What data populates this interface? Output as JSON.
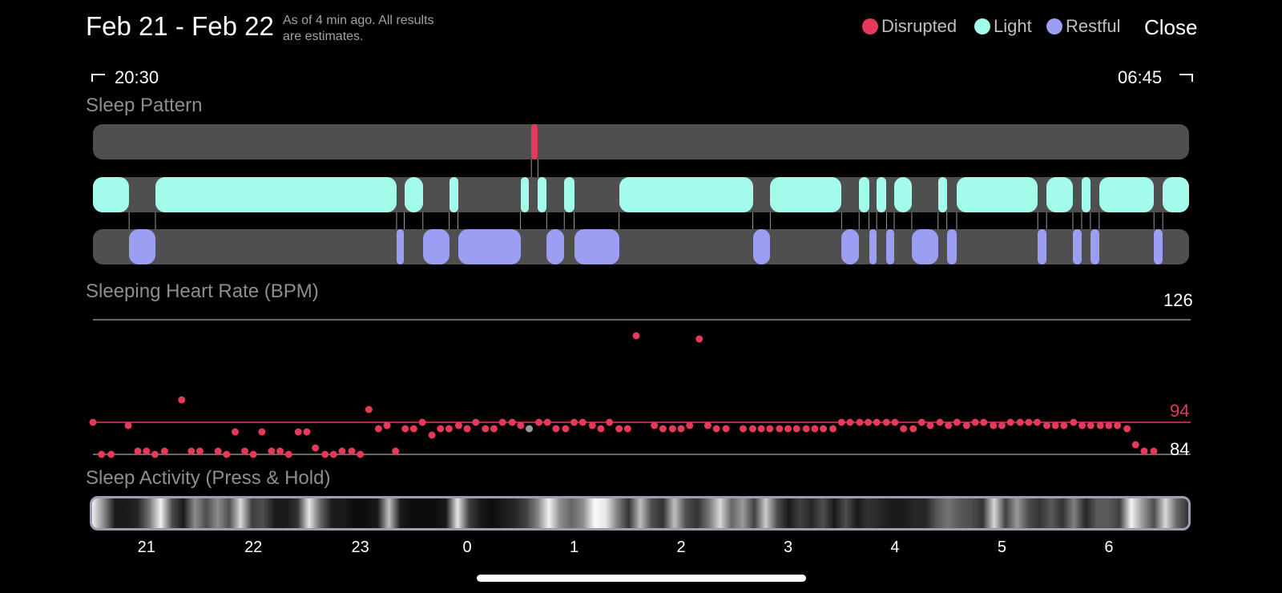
{
  "header": {
    "title": "Feb 21 - Feb 22",
    "asof_line1": "As of 4 min ago. All results",
    "asof_line2": "are estimates.",
    "close_label": "Close"
  },
  "legend": [
    {
      "label": "Disrupted",
      "color": "#e6395a"
    },
    {
      "label": "Light",
      "color": "#a3fbeb"
    },
    {
      "label": "Restful",
      "color": "#9a9ff4"
    }
  ],
  "time_range": {
    "start": "20:30",
    "end": "06:45"
  },
  "sleep_pattern": {
    "title": "Sleep Pattern",
    "disrupted": [
      [
        0.4,
        0.406
      ]
    ],
    "light": [
      [
        0.0,
        0.033
      ],
      [
        0.057,
        0.277
      ],
      [
        0.284,
        0.301
      ],
      [
        0.325,
        0.333
      ],
      [
        0.39,
        0.398
      ],
      [
        0.406,
        0.414
      ],
      [
        0.43,
        0.439
      ],
      [
        0.48,
        0.602
      ],
      [
        0.618,
        0.683
      ],
      [
        0.699,
        0.708
      ],
      [
        0.715,
        0.724
      ],
      [
        0.731,
        0.747
      ],
      [
        0.771,
        0.779
      ],
      [
        0.788,
        0.862
      ],
      [
        0.87,
        0.894
      ],
      [
        0.902,
        0.91
      ],
      [
        0.918,
        0.968
      ],
      [
        0.976,
        1.0
      ]
    ],
    "restful": [
      [
        0.033,
        0.057
      ],
      [
        0.277,
        0.284
      ],
      [
        0.301,
        0.325
      ],
      [
        0.333,
        0.39
      ],
      [
        0.414,
        0.43
      ],
      [
        0.439,
        0.48
      ],
      [
        0.602,
        0.618
      ],
      [
        0.683,
        0.699
      ],
      [
        0.708,
        0.715
      ],
      [
        0.724,
        0.731
      ],
      [
        0.747,
        0.771
      ],
      [
        0.779,
        0.788
      ],
      [
        0.862,
        0.87
      ],
      [
        0.894,
        0.902
      ],
      [
        0.91,
        0.918
      ],
      [
        0.968,
        0.976
      ]
    ]
  },
  "heart_rate": {
    "title": "Sleeping Heart Rate (BPM)",
    "max_label": "126",
    "avg_label": "94",
    "min_label": "84",
    "max": 126,
    "avg": 94,
    "min": 84,
    "dot_color": "#e6395a",
    "line_color": "#e6395a",
    "points": [
      [
        20.5,
        94
      ],
      [
        20.58,
        84
      ],
      [
        20.67,
        84
      ],
      [
        20.83,
        93
      ],
      [
        20.92,
        85
      ],
      [
        21.0,
        85
      ],
      [
        21.08,
        84
      ],
      [
        21.17,
        85
      ],
      [
        21.33,
        101
      ],
      [
        21.42,
        85
      ],
      [
        21.5,
        85
      ],
      [
        21.67,
        85
      ],
      [
        21.75,
        84
      ],
      [
        21.83,
        91
      ],
      [
        21.92,
        85
      ],
      [
        22.0,
        84
      ],
      [
        22.08,
        91
      ],
      [
        22.17,
        85
      ],
      [
        22.25,
        85
      ],
      [
        22.33,
        84
      ],
      [
        22.42,
        91
      ],
      [
        22.5,
        91
      ],
      [
        22.58,
        86
      ],
      [
        22.67,
        84
      ],
      [
        22.75,
        84
      ],
      [
        22.83,
        85
      ],
      [
        22.92,
        85
      ],
      [
        23.0,
        84
      ],
      [
        23.08,
        98
      ],
      [
        23.17,
        92
      ],
      [
        23.25,
        93
      ],
      [
        23.33,
        85
      ],
      [
        23.42,
        92
      ],
      [
        23.5,
        92
      ],
      [
        23.58,
        94
      ],
      [
        23.67,
        90
      ],
      [
        23.75,
        92
      ],
      [
        23.83,
        92
      ],
      [
        23.92,
        93
      ],
      [
        24.0,
        92
      ],
      [
        24.08,
        94
      ],
      [
        24.17,
        92
      ],
      [
        24.25,
        92
      ],
      [
        24.33,
        94
      ],
      [
        24.42,
        94
      ],
      [
        24.5,
        93
      ],
      [
        24.67,
        94
      ],
      [
        24.75,
        94
      ],
      [
        24.83,
        92
      ],
      [
        24.92,
        92
      ],
      [
        25.0,
        94
      ],
      [
        25.08,
        94
      ],
      [
        25.17,
        93
      ],
      [
        25.25,
        92
      ],
      [
        25.33,
        94
      ],
      [
        25.42,
        92
      ],
      [
        25.5,
        92
      ],
      [
        25.58,
        121
      ],
      [
        25.75,
        93
      ],
      [
        25.83,
        92
      ],
      [
        25.92,
        92
      ],
      [
        26.0,
        92
      ],
      [
        26.08,
        93
      ],
      [
        26.17,
        120
      ],
      [
        26.25,
        93
      ],
      [
        26.33,
        92
      ],
      [
        26.42,
        92
      ],
      [
        26.58,
        92
      ],
      [
        26.67,
        92
      ],
      [
        26.75,
        92
      ],
      [
        26.83,
        92
      ],
      [
        26.92,
        92
      ],
      [
        27.0,
        92
      ],
      [
        27.08,
        92
      ],
      [
        27.17,
        92
      ],
      [
        27.25,
        92
      ],
      [
        27.33,
        92
      ],
      [
        27.42,
        92
      ],
      [
        27.5,
        94
      ],
      [
        27.58,
        94
      ],
      [
        27.67,
        94
      ],
      [
        27.75,
        94
      ],
      [
        27.83,
        94
      ],
      [
        27.92,
        94
      ],
      [
        28.0,
        94
      ],
      [
        28.08,
        92
      ],
      [
        28.17,
        92
      ],
      [
        28.25,
        94
      ],
      [
        28.33,
        93
      ],
      [
        28.42,
        94
      ],
      [
        28.5,
        93
      ],
      [
        28.58,
        94
      ],
      [
        28.67,
        93
      ],
      [
        28.75,
        94
      ],
      [
        28.83,
        94
      ],
      [
        28.92,
        93
      ],
      [
        29.0,
        93
      ],
      [
        29.08,
        94
      ],
      [
        29.17,
        94
      ],
      [
        29.25,
        94
      ],
      [
        29.33,
        94
      ],
      [
        29.42,
        93
      ],
      [
        29.5,
        93
      ],
      [
        29.58,
        93
      ],
      [
        29.67,
        94
      ],
      [
        29.75,
        93
      ],
      [
        29.83,
        93
      ],
      [
        29.92,
        93
      ],
      [
        30.0,
        93
      ],
      [
        30.08,
        93
      ],
      [
        30.17,
        92
      ],
      [
        30.25,
        87
      ],
      [
        30.33,
        85
      ],
      [
        30.42,
        85
      ]
    ],
    "highlight_point": [
      24.58,
      92
    ],
    "highlight_color": "#9a9a9a"
  },
  "sleep_activity": {
    "title": "Sleep Activity (Press & Hold)",
    "x_ticks": [
      "21",
      "22",
      "23",
      "0",
      "1",
      "2",
      "3",
      "4",
      "5",
      "6"
    ],
    "x_tick_hours": [
      21,
      22,
      23,
      24,
      25,
      26,
      27,
      28,
      29,
      30
    ],
    "x_min": 20.5,
    "x_max": 30.75,
    "intensity": [
      0.95,
      0.55,
      0.1,
      0.1,
      0.15,
      0.45,
      0.95,
      0.3,
      0.1,
      0.55,
      0.3,
      0.55,
      0.3,
      0.85,
      0.25,
      0.3,
      0.1,
      0.1,
      0.2,
      0.9,
      0.4,
      0.1,
      0.1,
      0.05,
      0.05,
      0.1,
      0.75,
      0.1,
      0.05,
      0.05,
      0.05,
      0.1,
      0.9,
      0.25,
      0.1,
      0.05,
      0.1,
      0.15,
      0.25,
      0.5,
      0.95,
      0.55,
      0.4,
      0.55,
      0.98,
      0.9,
      0.5,
      0.2,
      0.75,
      0.3,
      0.2,
      0.75,
      0.3,
      0.2,
      0.45,
      0.85,
      0.4,
      0.6,
      0.25,
      0.8,
      0.3,
      0.1,
      0.25,
      0.15,
      0.3,
      0.1,
      0.3,
      0.1,
      0.2,
      0.15,
      0.1,
      0.1,
      0.15,
      0.15,
      0.35,
      0.45,
      0.35,
      0.3,
      0.2,
      0.85,
      0.25,
      0.6,
      0.3,
      0.2,
      0.35,
      0.2,
      0.5,
      0.15,
      0.35,
      0.35,
      0.25,
      0.95,
      0.6,
      0.3,
      0.85,
      0.4,
      0.2
    ]
  }
}
